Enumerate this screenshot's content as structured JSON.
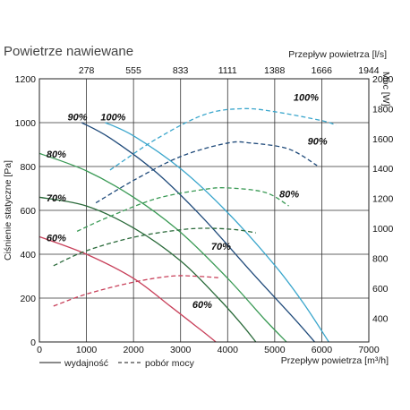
{
  "chart_data": {
    "type": "line",
    "title": "Powietrze nawiewane",
    "colors": {
      "100%": "#3aa6cc",
      "90%": "#1f4a7a",
      "80%": "#3a9a55",
      "70%": "#2a6a3a",
      "60%": "#c8405a"
    },
    "x_axis": {
      "label": "Przepływ powietrza [m³/h]",
      "lim": [
        0,
        7000
      ],
      "ticks": [
        0,
        1000,
        2000,
        3000,
        4000,
        5000,
        6000,
        7000
      ]
    },
    "x2_axis": {
      "label": "Przepływ powietrza [l/s]",
      "ticks": [
        278,
        555,
        833,
        1111,
        1388,
        1666,
        1944
      ]
    },
    "y_axis": {
      "label": "Ciśnienie statyczne [Pa]",
      "lim": [
        0,
        1200
      ],
      "ticks": [
        0,
        200,
        400,
        600,
        800,
        1000,
        1200
      ]
    },
    "y2_axis": {
      "label": "Moc [W]",
      "lim": [
        240,
        2000
      ],
      "ticks": [
        400,
        600,
        800,
        1000,
        1200,
        1400,
        1600,
        1800,
        2000
      ]
    },
    "pressure_series": [
      {
        "name": "100%",
        "x": [
          1400,
          2000,
          3000,
          4000,
          5000,
          5600,
          6150
        ],
        "y": [
          1000,
          940,
          790,
          590,
          350,
          180,
          0
        ]
      },
      {
        "name": "90%",
        "x": [
          900,
          1500,
          2500,
          3500,
          4500,
          5400,
          5850
        ],
        "y": [
          1000,
          930,
          770,
          560,
          320,
          110,
          0
        ]
      },
      {
        "name": "80%",
        "x": [
          0,
          1000,
          2000,
          3000,
          4000,
          4800,
          5250
        ],
        "y": [
          860,
          780,
          660,
          500,
          290,
          100,
          0
        ]
      },
      {
        "name": "70%",
        "x": [
          0,
          1000,
          2000,
          3000,
          3800,
          4300,
          4600
        ],
        "y": [
          660,
          620,
          520,
          370,
          200,
          80,
          0
        ]
      },
      {
        "name": "60%",
        "x": [
          0,
          1000,
          2000,
          2800,
          3400,
          3750
        ],
        "y": [
          480,
          400,
          290,
          160,
          60,
          0
        ]
      }
    ],
    "power_series": [
      {
        "name": "100%",
        "x": [
          1500,
          2500,
          3500,
          4300,
          5000,
          6000,
          6300
        ],
        "y": [
          1390,
          1600,
          1760,
          1800,
          1780,
          1720,
          1690
        ]
      },
      {
        "name": "90%",
        "x": [
          1200,
          2000,
          3000,
          4000,
          4500,
          5300,
          5900
        ],
        "y": [
          1170,
          1320,
          1480,
          1570,
          1570,
          1530,
          1420
        ]
      },
      {
        "name": "80%",
        "x": [
          800,
          1500,
          2500,
          3500,
          4000,
          4800,
          5300
        ],
        "y": [
          980,
          1080,
          1200,
          1260,
          1270,
          1240,
          1150
        ]
      },
      {
        "name": "70%",
        "x": [
          300,
          1000,
          2000,
          3000,
          3600,
          4200,
          4600
        ],
        "y": [
          750,
          850,
          940,
          990,
          1000,
          990,
          970
        ]
      },
      {
        "name": "60%",
        "x": [
          300,
          1000,
          2000,
          2800,
          3300,
          3800
        ],
        "y": [
          480,
          560,
          640,
          680,
          680,
          670
        ]
      }
    ],
    "curve_labels": [
      {
        "text": "100%",
        "x": 1300,
        "y": 1010
      },
      {
        "text": "90%",
        "x": 600,
        "y": 1010
      },
      {
        "text": "80%",
        "x": 150,
        "y": 840
      },
      {
        "text": "70%",
        "x": 150,
        "y": 640
      },
      {
        "text": "60%",
        "x": 150,
        "y": 460
      },
      {
        "text": "100%",
        "x": 5400,
        "y": 1100
      },
      {
        "text": "90%",
        "x": 5700,
        "y": 900
      },
      {
        "text": "80%",
        "x": 5100,
        "y": 660
      },
      {
        "text": "70%",
        "x": 3650,
        "y": 420
      },
      {
        "text": "60%",
        "x": 3250,
        "y": 155
      }
    ],
    "legend": {
      "solid": "wydajność",
      "dashed": "pobór mocy"
    }
  }
}
